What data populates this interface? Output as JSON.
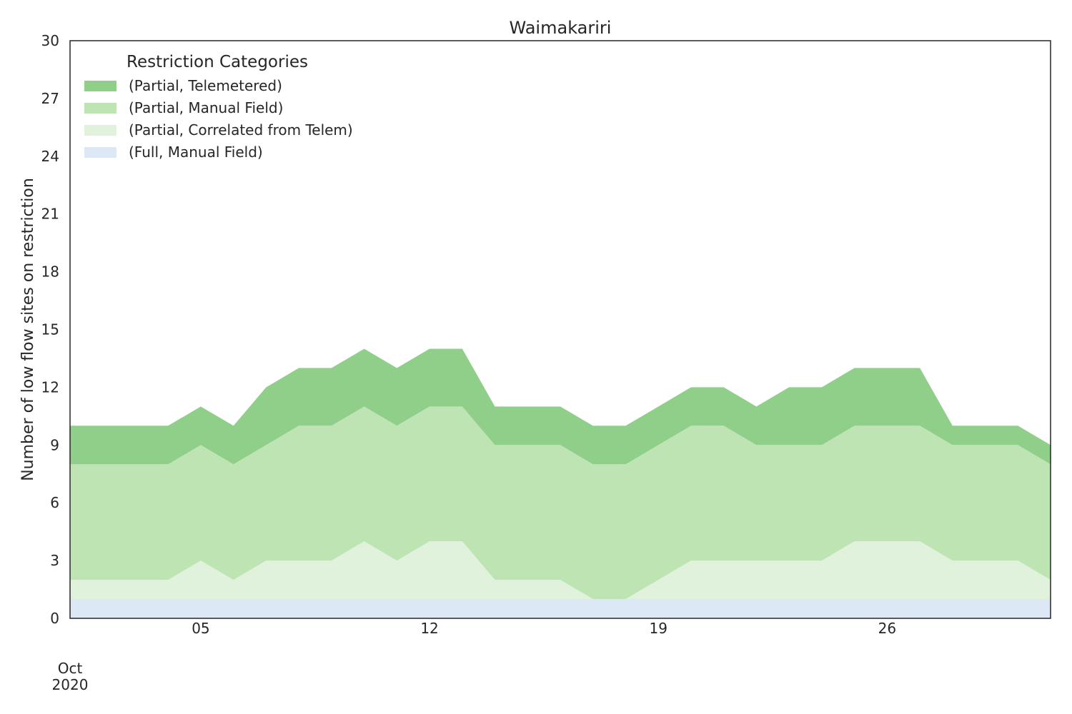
{
  "chart_data": {
    "type": "area",
    "stacked": true,
    "title": "Waimakariri",
    "xlabel": "",
    "ylabel": "Number of low flow sites on restriction",
    "x": [
      "2020-10-01",
      "2020-10-02",
      "2020-10-03",
      "2020-10-04",
      "2020-10-05",
      "2020-10-06",
      "2020-10-07",
      "2020-10-08",
      "2020-10-09",
      "2020-10-10",
      "2020-10-11",
      "2020-10-12",
      "2020-10-13",
      "2020-10-14",
      "2020-10-15",
      "2020-10-16",
      "2020-10-17",
      "2020-10-18",
      "2020-10-19",
      "2020-10-20",
      "2020-10-21",
      "2020-10-22",
      "2020-10-23",
      "2020-10-24",
      "2020-10-25",
      "2020-10-26",
      "2020-10-27",
      "2020-10-28",
      "2020-10-29",
      "2020-10-30",
      "2020-10-31"
    ],
    "xlim": [
      "2020-10-01",
      "2020-10-31"
    ],
    "ylim": [
      0,
      30
    ],
    "yticks": [
      0,
      3,
      6,
      9,
      12,
      15,
      18,
      21,
      24,
      27,
      30
    ],
    "xticks": [
      {
        "date": "2020-10-01",
        "label": "",
        "sublabel": "Oct\n2020"
      },
      {
        "date": "2020-10-05",
        "label": "05"
      },
      {
        "date": "2020-10-12",
        "label": "12"
      },
      {
        "date": "2020-10-19",
        "label": "19"
      },
      {
        "date": "2020-10-26",
        "label": "26"
      }
    ],
    "grid": false,
    "legend": {
      "title": "Restriction Categories",
      "position": "top-left"
    },
    "series": [
      {
        "name": "(Full, Manual Field)",
        "color": "#dce8f5",
        "values": [
          1,
          1,
          1,
          1,
          1,
          1,
          1,
          1,
          1,
          1,
          1,
          1,
          1,
          1,
          1,
          1,
          1,
          1,
          1,
          1,
          1,
          1,
          1,
          1,
          1,
          1,
          1,
          1,
          1,
          1,
          1
        ]
      },
      {
        "name": "(Partial, Correlated from Telem)",
        "color": "#e0f2db",
        "values": [
          1,
          1,
          1,
          1,
          2,
          1,
          2,
          2,
          2,
          3,
          2,
          3,
          3,
          1,
          1,
          1,
          0,
          0,
          1,
          2,
          2,
          2,
          2,
          2,
          3,
          3,
          3,
          2,
          2,
          2,
          1
        ]
      },
      {
        "name": "(Partial, Manual Field)",
        "color": "#bee4b4",
        "values": [
          6,
          6,
          6,
          6,
          6,
          6,
          6,
          7,
          7,
          7,
          7,
          7,
          7,
          7,
          7,
          7,
          7,
          7,
          7,
          7,
          7,
          6,
          6,
          6,
          6,
          6,
          6,
          6,
          6,
          6,
          6
        ]
      },
      {
        "name": "(Partial, Telemetered)",
        "color": "#8fcf8a",
        "values": [
          2,
          2,
          2,
          2,
          2,
          2,
          3,
          3,
          3,
          3,
          3,
          3,
          3,
          2,
          2,
          2,
          2,
          2,
          2,
          2,
          2,
          2,
          3,
          3,
          3,
          3,
          3,
          1,
          1,
          1,
          1
        ]
      }
    ]
  }
}
